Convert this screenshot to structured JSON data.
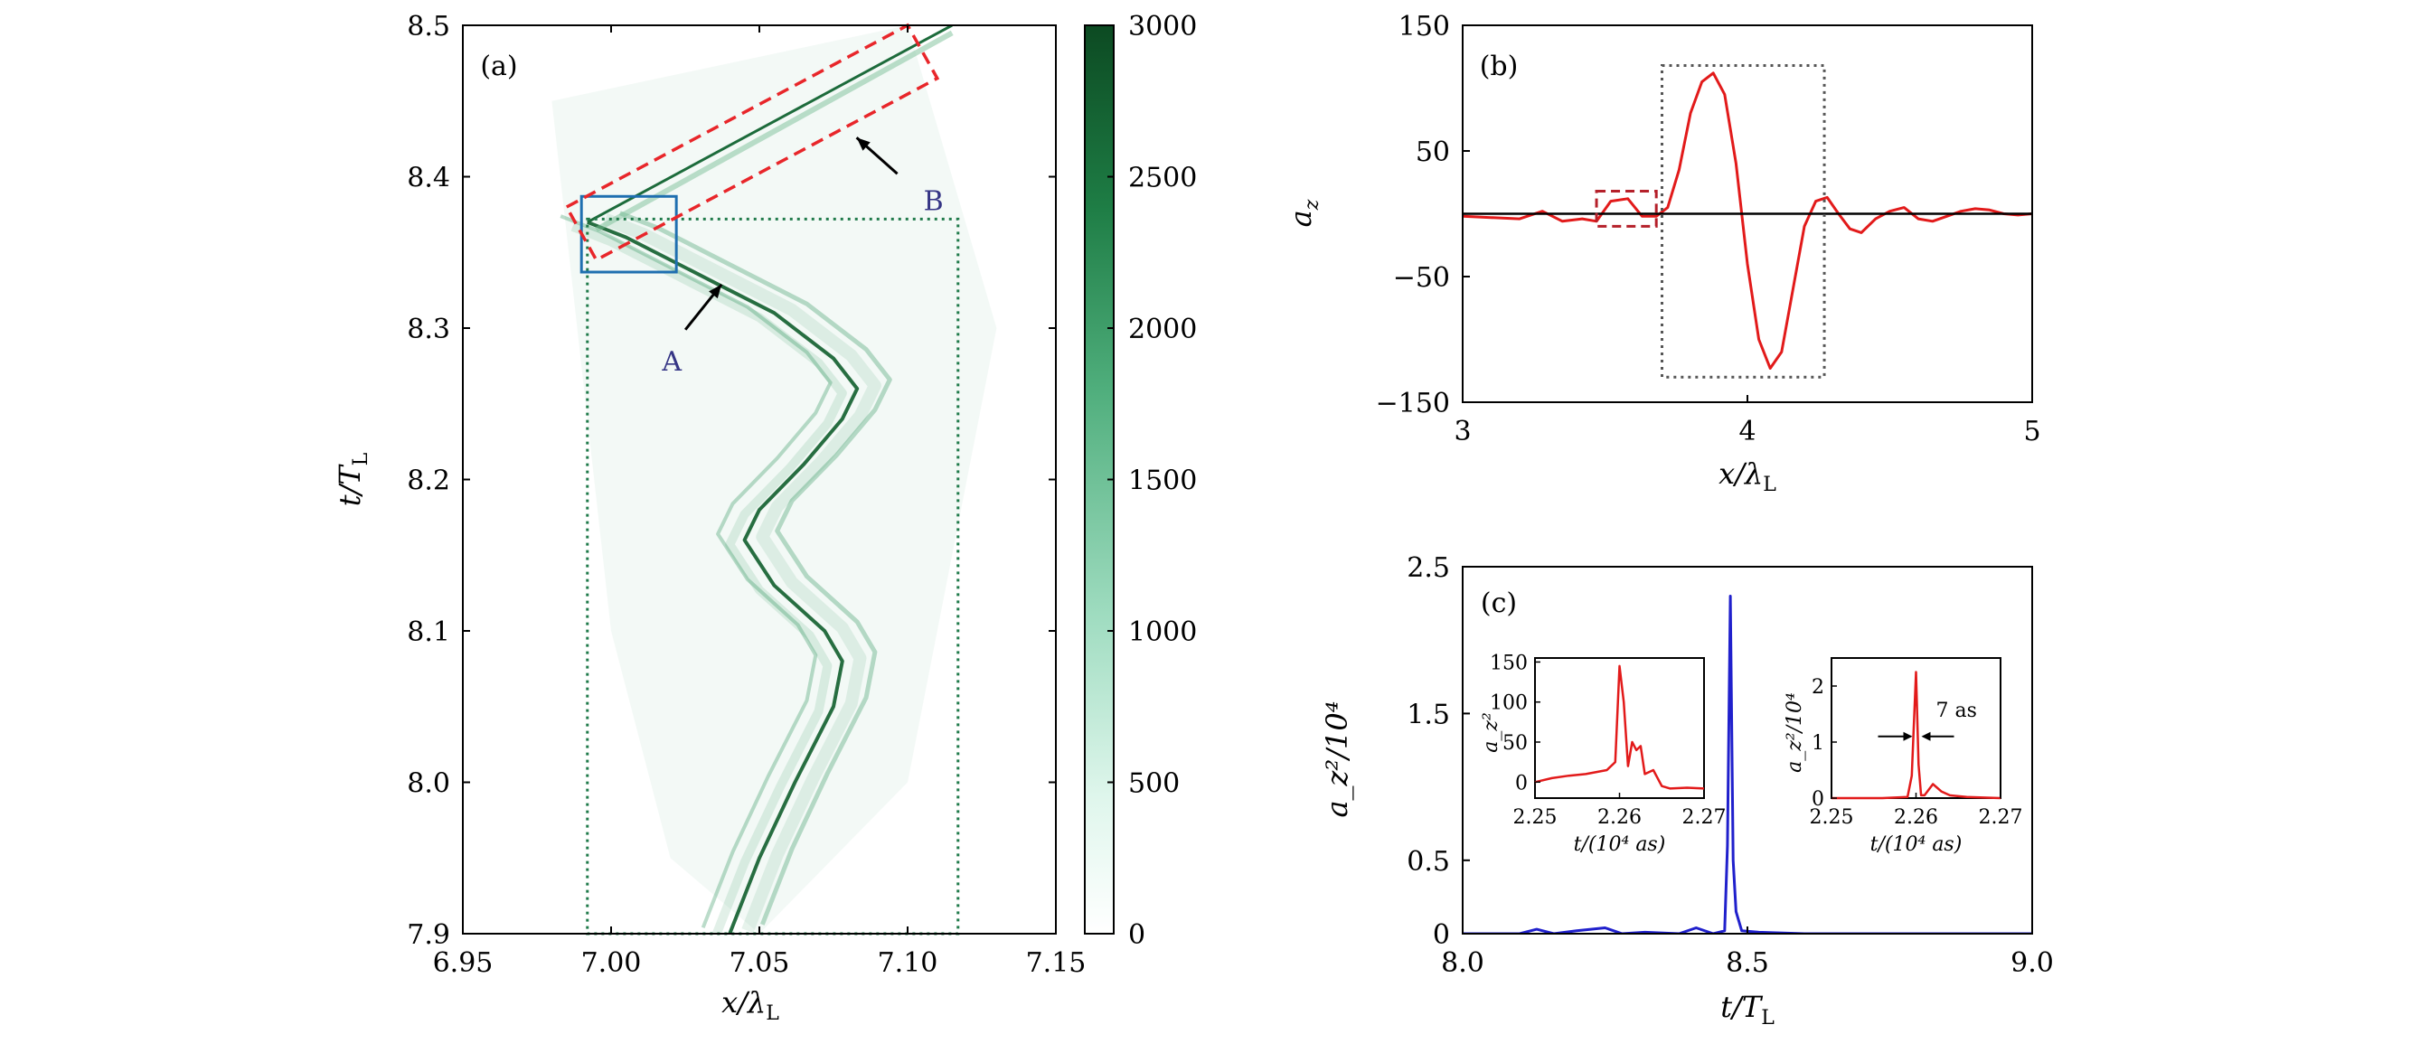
{
  "chart_data": [
    {
      "panel": "(a)",
      "type": "heatmap",
      "xlabel": "x/λL",
      "ylabel": "t/TL",
      "xlim": [
        6.95,
        7.15
      ],
      "ylim": [
        7.9,
        8.5
      ],
      "xticks": [
        "6.95",
        "7.00",
        "7.05",
        "7.10",
        "7.15"
      ],
      "yticks": [
        "7.9",
        "8.0",
        "8.1",
        "8.2",
        "8.3",
        "8.4",
        "8.5"
      ],
      "colorbar": {
        "range": [
          0,
          3000
        ],
        "ticks": [
          "0",
          "500",
          "1000",
          "1500",
          "2000",
          "2500",
          "3000"
        ],
        "colormap": "white-to-dark-green"
      },
      "trajectory": {
        "x": [
          7.04,
          7.05,
          7.062,
          7.075,
          7.078,
          7.072,
          7.055,
          7.045,
          7.05,
          7.065,
          7.078,
          7.083,
          7.075,
          7.055,
          7.035,
          7.02,
          7.005,
          6.992
        ],
        "t": [
          7.9,
          7.95,
          8.0,
          8.05,
          8.08,
          8.1,
          8.13,
          8.16,
          8.18,
          8.21,
          8.24,
          8.26,
          8.28,
          8.31,
          8.33,
          8.345,
          8.36,
          8.37
        ]
      },
      "reflected_line": {
        "x": [
          6.992,
          7.115
        ],
        "t": [
          8.37,
          8.5
        ]
      },
      "annotations": [
        {
          "label": "A",
          "x": 7.022,
          "t": 8.29
        },
        {
          "label": "B",
          "x": 7.095,
          "t": 8.39
        }
      ]
    },
    {
      "panel": "(b)",
      "type": "line",
      "xlabel": "x/λL",
      "ylabel": "a_z",
      "xlim": [
        3,
        5
      ],
      "ylim": [
        -150,
        150
      ],
      "xticks": [
        "3",
        "4",
        "5"
      ],
      "yticks": [
        "150",
        "50",
        "−50",
        "−150"
      ],
      "series": [
        {
          "color": "#e21a1a",
          "x": [
            3.0,
            3.1,
            3.2,
            3.28,
            3.35,
            3.42,
            3.47,
            3.52,
            3.58,
            3.63,
            3.68,
            3.72,
            3.76,
            3.8,
            3.84,
            3.88,
            3.92,
            3.96,
            4.0,
            4.04,
            4.08,
            4.12,
            4.16,
            4.2,
            4.24,
            4.28,
            4.32,
            4.36,
            4.4,
            4.45,
            4.5,
            4.55,
            4.6,
            4.65,
            4.7,
            4.75,
            4.8,
            4.85,
            4.9,
            4.95,
            5.0
          ],
          "y": [
            -2,
            -3,
            -4,
            2,
            -6,
            -4,
            -6,
            10,
            12,
            -2,
            -2,
            5,
            35,
            80,
            105,
            112,
            95,
            40,
            -40,
            -100,
            -123,
            -110,
            -60,
            -10,
            10,
            13,
            0,
            -12,
            -15,
            -4,
            2,
            5,
            -4,
            -6,
            -2,
            2,
            4,
            3,
            0,
            -1,
            0
          ]
        },
        {
          "color": "#000000",
          "x": [
            3,
            5
          ],
          "y": [
            0,
            0
          ]
        }
      ]
    },
    {
      "panel": "(c)",
      "type": "line",
      "xlabel": "t/TL",
      "ylabel": "a_z²/10⁴",
      "xlim": [
        8.0,
        9.0
      ],
      "ylim": [
        0,
        2.5
      ],
      "xticks": [
        "8.0",
        "8.5",
        "9.0"
      ],
      "yticks": [
        "2.5",
        "1.5",
        "0.5",
        "0"
      ],
      "series": [
        {
          "color": "#2020cc",
          "x": [
            8.0,
            8.1,
            8.13,
            8.16,
            8.2,
            8.25,
            8.28,
            8.32,
            8.38,
            8.41,
            8.44,
            8.46,
            8.465,
            8.47,
            8.475,
            8.48,
            8.49,
            8.52,
            8.6,
            9.0
          ],
          "y": [
            0,
            0.0,
            0.03,
            0.0,
            0.02,
            0.04,
            0.0,
            0.01,
            0.0,
            0.04,
            0.0,
            0.02,
            0.6,
            2.3,
            0.5,
            0.15,
            0.02,
            0.01,
            0.0,
            0.0
          ]
        }
      ],
      "insets": [
        {
          "xlim": [
            2.25,
            2.27
          ],
          "ylim": [
            -20,
            155
          ],
          "xticks": [
            "2.25",
            "2.26",
            "2.27"
          ],
          "yticks": [
            "150",
            "100",
            "50",
            "0"
          ],
          "xlabel": "t/(10⁴ as)",
          "ylabel": "a_z²",
          "series": [
            {
              "color": "#e21a1a",
              "x": [
                2.25,
                2.252,
                2.254,
                2.256,
                2.2585,
                2.2595,
                2.26,
                2.2605,
                2.261,
                2.2615,
                2.262,
                2.2625,
                2.263,
                2.264,
                2.265,
                2.266,
                2.268,
                2.27
              ],
              "y": [
                0,
                5,
                8,
                10,
                15,
                25,
                145,
                100,
                20,
                50,
                40,
                45,
                10,
                15,
                -5,
                -8,
                -7,
                -8
              ]
            }
          ]
        },
        {
          "xlim": [
            2.25,
            2.27
          ],
          "ylim": [
            0,
            2.5
          ],
          "xticks": [
            "2.25",
            "2.26",
            "2.27"
          ],
          "yticks": [
            "2",
            "1",
            "0"
          ],
          "xlabel": "t/(10⁴ as)",
          "ylabel": "a_z²/10⁴",
          "annotation": "7 as",
          "series": [
            {
              "color": "#e21a1a",
              "x": [
                2.25,
                2.256,
                2.259,
                2.2595,
                2.26,
                2.2603,
                2.2606,
                2.261,
                2.262,
                2.263,
                2.264,
                2.266,
                2.27
              ],
              "y": [
                0,
                0,
                0.02,
                0.4,
                2.25,
                0.6,
                0.05,
                0.05,
                0.25,
                0.12,
                0.05,
                0.02,
                0.0
              ]
            }
          ]
        }
      ]
    }
  ]
}
